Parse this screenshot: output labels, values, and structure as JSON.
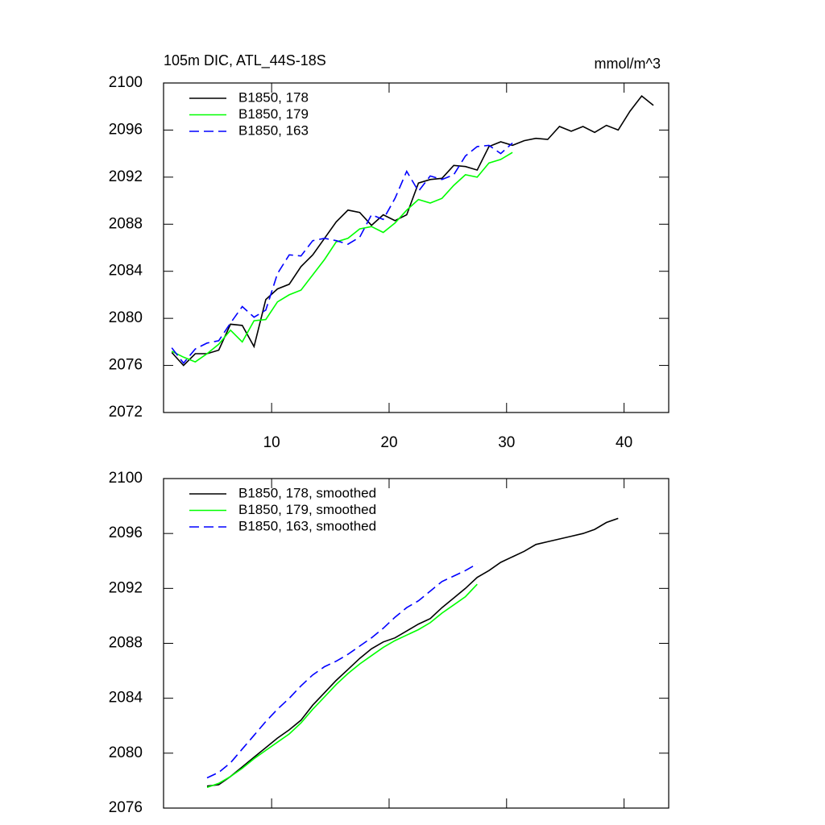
{
  "chart_data": [
    {
      "type": "line",
      "title": "105m DIC, ATL_44S-18S",
      "units": "mmol/m^3",
      "xlim": [
        0.8,
        43.8
      ],
      "xticks": [
        10,
        20,
        30,
        40
      ],
      "ylim": [
        2072,
        2100
      ],
      "yticks": [
        2072,
        2076,
        2080,
        2084,
        2088,
        2092,
        2096,
        2100
      ],
      "series": [
        {
          "name": "B1850, 178",
          "color": "#000000",
          "line_style": "solid",
          "x": [
            1.5,
            2.5,
            3.5,
            4.5,
            5.5,
            6.5,
            7.5,
            8.5,
            9.5,
            10.5,
            11.5,
            12.5,
            13.5,
            14.5,
            15.5,
            16.5,
            17.5,
            18.5,
            19.5,
            20.5,
            21.5,
            22.5,
            23.5,
            24.5,
            25.5,
            26.5,
            27.5,
            28.5,
            29.5,
            30.5,
            31.5,
            32.5,
            33.5,
            34.5,
            35.5,
            36.5,
            37.5,
            38.5,
            39.5,
            40.5,
            41.5,
            42.5
          ],
          "values": [
            2077.1,
            2076.0,
            2077.0,
            2077.0,
            2077.3,
            2079.5,
            2079.4,
            2077.6,
            2081.6,
            2082.5,
            2082.9,
            2084.4,
            2085.4,
            2086.8,
            2088.2,
            2089.2,
            2089.0,
            2087.9,
            2088.8,
            2088.3,
            2088.8,
            2091.5,
            2091.8,
            2091.9,
            2093.0,
            2092.9,
            2092.6,
            2094.6,
            2095.0,
            2094.7,
            2095.1,
            2095.3,
            2095.2,
            2096.3,
            2095.9,
            2096.3,
            2095.8,
            2096.4,
            2096.0,
            2097.6,
            2098.9,
            2098.1
          ]
        },
        {
          "name": "B1850, 179",
          "color": "#00ff00",
          "line_style": "solid",
          "x": [
            1.5,
            2.5,
            3.5,
            4.5,
            5.5,
            6.5,
            7.5,
            8.5,
            9.5,
            10.5,
            11.5,
            12.5,
            13.5,
            14.5,
            15.5,
            16.5,
            17.5,
            18.5,
            19.5,
            20.5,
            21.5,
            22.5,
            23.5,
            24.5,
            25.5,
            26.5,
            27.5,
            28.5,
            29.5,
            30.5
          ],
          "values": [
            2077.2,
            2076.7,
            2076.3,
            2077.0,
            2077.8,
            2079.0,
            2078.0,
            2079.8,
            2079.9,
            2081.4,
            2082.0,
            2082.4,
            2083.7,
            2085.0,
            2086.5,
            2086.8,
            2087.6,
            2087.8,
            2087.3,
            2088.1,
            2089.2,
            2090.1,
            2089.8,
            2090.2,
            2091.3,
            2092.2,
            2092.0,
            2093.2,
            2093.5,
            2094.1
          ]
        },
        {
          "name": "B1850, 163",
          "color": "#0000ff",
          "line_style": "dashed",
          "x": [
            1.5,
            2.5,
            3.5,
            4.5,
            5.5,
            6.5,
            7.5,
            8.5,
            9.5,
            10.5,
            11.5,
            12.5,
            13.5,
            14.5,
            15.5,
            16.5,
            17.5,
            18.5,
            19.5,
            20.5,
            21.5,
            22.5,
            23.5,
            24.5,
            25.5,
            26.5,
            27.5,
            28.5,
            29.5,
            30.5
          ],
          "values": [
            2077.5,
            2076.2,
            2077.4,
            2077.9,
            2078.1,
            2079.6,
            2081.0,
            2080.1,
            2080.7,
            2083.8,
            2085.4,
            2085.3,
            2086.6,
            2086.8,
            2086.6,
            2086.3,
            2086.9,
            2088.8,
            2088.4,
            2090.2,
            2092.5,
            2090.8,
            2092.1,
            2091.8,
            2092.2,
            2093.8,
            2094.6,
            2094.7,
            2094.0,
            2094.9
          ]
        }
      ]
    },
    {
      "type": "line",
      "xlim": [
        0.8,
        43.8
      ],
      "xticks": [
        10,
        20,
        30,
        40
      ],
      "ylim": [
        2076,
        2100
      ],
      "yticks": [
        2076,
        2080,
        2084,
        2088,
        2092,
        2096,
        2100
      ],
      "series": [
        {
          "name": "B1850, 178, smoothed",
          "color": "#000000",
          "line_style": "solid",
          "x": [
            4.5,
            5.5,
            6.5,
            7.5,
            8.5,
            9.5,
            10.5,
            11.5,
            12.5,
            13.5,
            14.5,
            15.5,
            16.5,
            17.5,
            18.5,
            19.5,
            20.5,
            21.5,
            22.5,
            23.5,
            24.5,
            25.5,
            26.5,
            27.5,
            28.5,
            29.5,
            30.5,
            31.5,
            32.5,
            33.5,
            34.5,
            35.5,
            36.5,
            37.5,
            38.5,
            39.5
          ],
          "values": [
            2077.6,
            2077.7,
            2078.3,
            2079.0,
            2079.7,
            2080.4,
            2081.1,
            2081.7,
            2082.4,
            2083.5,
            2084.4,
            2085.3,
            2086.1,
            2086.9,
            2087.6,
            2088.1,
            2088.4,
            2088.9,
            2089.4,
            2089.8,
            2090.6,
            2091.3,
            2092.0,
            2092.8,
            2093.3,
            2093.9,
            2094.3,
            2094.7,
            2095.2,
            2095.4,
            2095.6,
            2095.8,
            2096.0,
            2096.3,
            2096.8,
            2097.1
          ]
        },
        {
          "name": "B1850, 179, smoothed",
          "color": "#00ff00",
          "line_style": "solid",
          "x": [
            4.5,
            5.5,
            6.5,
            7.5,
            8.5,
            9.5,
            10.5,
            11.5,
            12.5,
            13.5,
            14.5,
            15.5,
            16.5,
            17.5,
            18.5,
            19.5,
            20.5,
            21.5,
            22.5,
            23.5,
            24.5,
            25.5,
            26.5,
            27.5
          ],
          "values": [
            2077.5,
            2077.8,
            2078.3,
            2078.9,
            2079.6,
            2080.2,
            2080.8,
            2081.4,
            2082.2,
            2083.2,
            2084.1,
            2085.0,
            2085.8,
            2086.5,
            2087.1,
            2087.7,
            2088.2,
            2088.6,
            2089.0,
            2089.5,
            2090.2,
            2090.8,
            2091.4,
            2092.3
          ]
        },
        {
          "name": "B1850, 163, smoothed",
          "color": "#0000ff",
          "line_style": "dashed",
          "x": [
            4.5,
            5.5,
            6.5,
            7.5,
            8.5,
            9.5,
            10.5,
            11.5,
            12.5,
            13.5,
            14.5,
            15.5,
            16.5,
            17.5,
            18.5,
            19.5,
            20.5,
            21.5,
            22.5,
            23.5,
            24.5,
            25.5,
            26.5,
            27.5
          ],
          "values": [
            2078.2,
            2078.6,
            2079.3,
            2080.3,
            2081.3,
            2082.3,
            2083.2,
            2084.0,
            2084.9,
            2085.7,
            2086.3,
            2086.7,
            2087.2,
            2087.8,
            2088.4,
            2089.1,
            2089.9,
            2090.6,
            2091.1,
            2091.8,
            2092.5,
            2092.9,
            2093.3,
            2093.8
          ]
        }
      ]
    }
  ]
}
